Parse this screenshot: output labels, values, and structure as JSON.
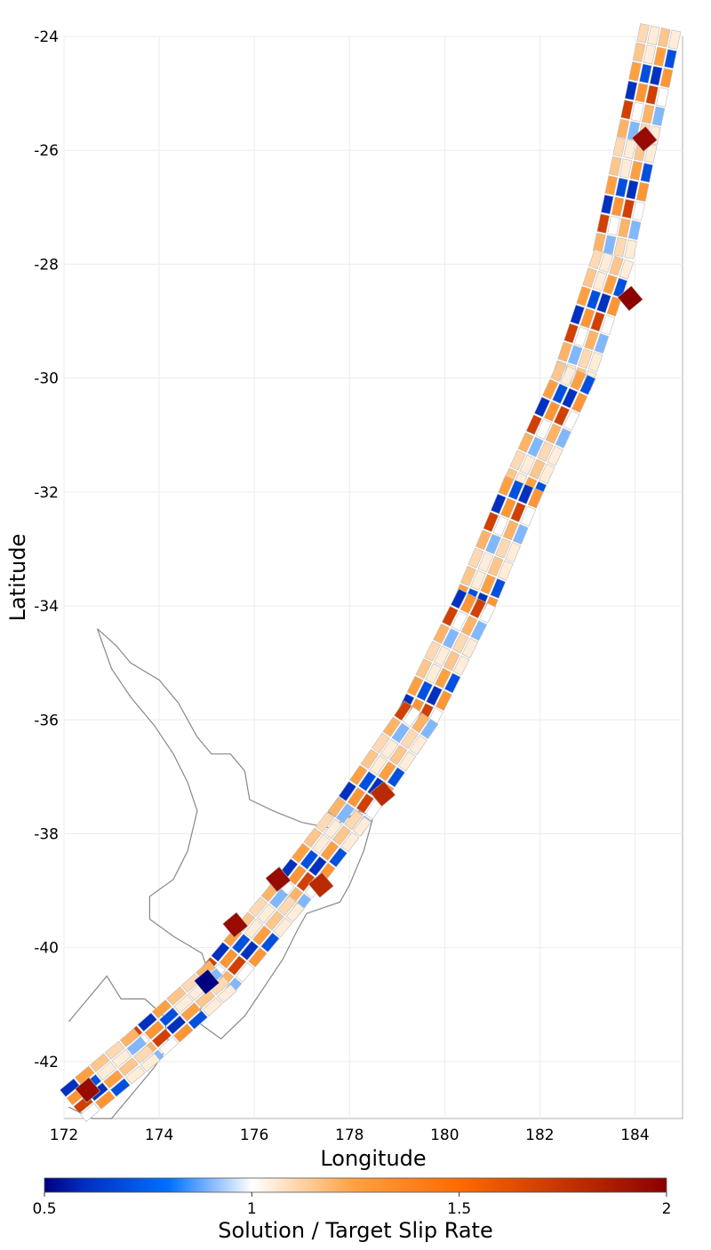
{
  "chart_data": {
    "type": "heatmap",
    "subtype": "fault-subsection map",
    "xlabel": "Longitude",
    "ylabel": "Latitude",
    "xlim": [
      172,
      185
    ],
    "ylim": [
      -43,
      -24
    ],
    "x_ticks": [
      172,
      174,
      176,
      178,
      180,
      182,
      184
    ],
    "y_ticks": [
      -24,
      -26,
      -28,
      -30,
      -32,
      -34,
      -36,
      -38,
      -40,
      -42
    ],
    "grid": true,
    "colorbar": {
      "label": "Solution / Target Slip Rate",
      "range": [
        0.5,
        2
      ],
      "ticks": [
        0.5,
        1,
        1.5,
        2
      ],
      "stops": [
        {
          "value": 0.5,
          "color": "#000080"
        },
        {
          "value": 0.6,
          "color": "#0030c0"
        },
        {
          "value": 0.8,
          "color": "#0070ff"
        },
        {
          "value": 1.0,
          "color": "#ffffff"
        },
        {
          "value": 1.25,
          "color": "#ffa040"
        },
        {
          "value": 1.5,
          "color": "#ff6a00"
        },
        {
          "value": 2.0,
          "color": "#8b0000"
        }
      ],
      "placement": "bottom"
    },
    "fault_trace": [
      {
        "lon": 184.5,
        "lat": -24.0
      },
      {
        "lon": 184.0,
        "lat": -26.0
      },
      {
        "lon": 183.5,
        "lat": -28.0
      },
      {
        "lon": 182.7,
        "lat": -30.0
      },
      {
        "lon": 181.6,
        "lat": -32.0
      },
      {
        "lon": 180.6,
        "lat": -34.0
      },
      {
        "lon": 179.4,
        "lat": -36.0
      },
      {
        "lon": 178.0,
        "lat": -37.7
      },
      {
        "lon": 176.6,
        "lat": -39.2
      },
      {
        "lon": 175.2,
        "lat": -40.6
      },
      {
        "lon": 173.6,
        "lat": -41.8
      },
      {
        "lon": 172.3,
        "lat": -42.7
      }
    ],
    "trace_width_deg": 0.9,
    "cell_ratio_samples": [
      1.05,
      0.85,
      1.2,
      1.0,
      0.7,
      1.4,
      1.1,
      0.95,
      1.3,
      0.8,
      1.15,
      1.9,
      1.0,
      0.75,
      1.25,
      1.5,
      0.9,
      1.1,
      0.6,
      1.35,
      1.05,
      0.88,
      1.7,
      1.2
    ],
    "highlighted_cells": [
      {
        "lon": 184.2,
        "lat": -25.8,
        "ratio": 1.95
      },
      {
        "lon": 183.9,
        "lat": -28.6,
        "ratio": 2.0
      },
      {
        "lon": 176.5,
        "lat": -38.8,
        "ratio": 1.95
      },
      {
        "lon": 175.6,
        "lat": -39.6,
        "ratio": 1.95
      },
      {
        "lon": 175.0,
        "lat": -40.6,
        "ratio": 0.5
      },
      {
        "lon": 172.5,
        "lat": -42.5,
        "ratio": 1.95
      },
      {
        "lon": 178.7,
        "lat": -37.3,
        "ratio": 1.8
      },
      {
        "lon": 177.4,
        "lat": -38.9,
        "ratio": 1.8
      }
    ],
    "coastline_note_visible": false
  }
}
